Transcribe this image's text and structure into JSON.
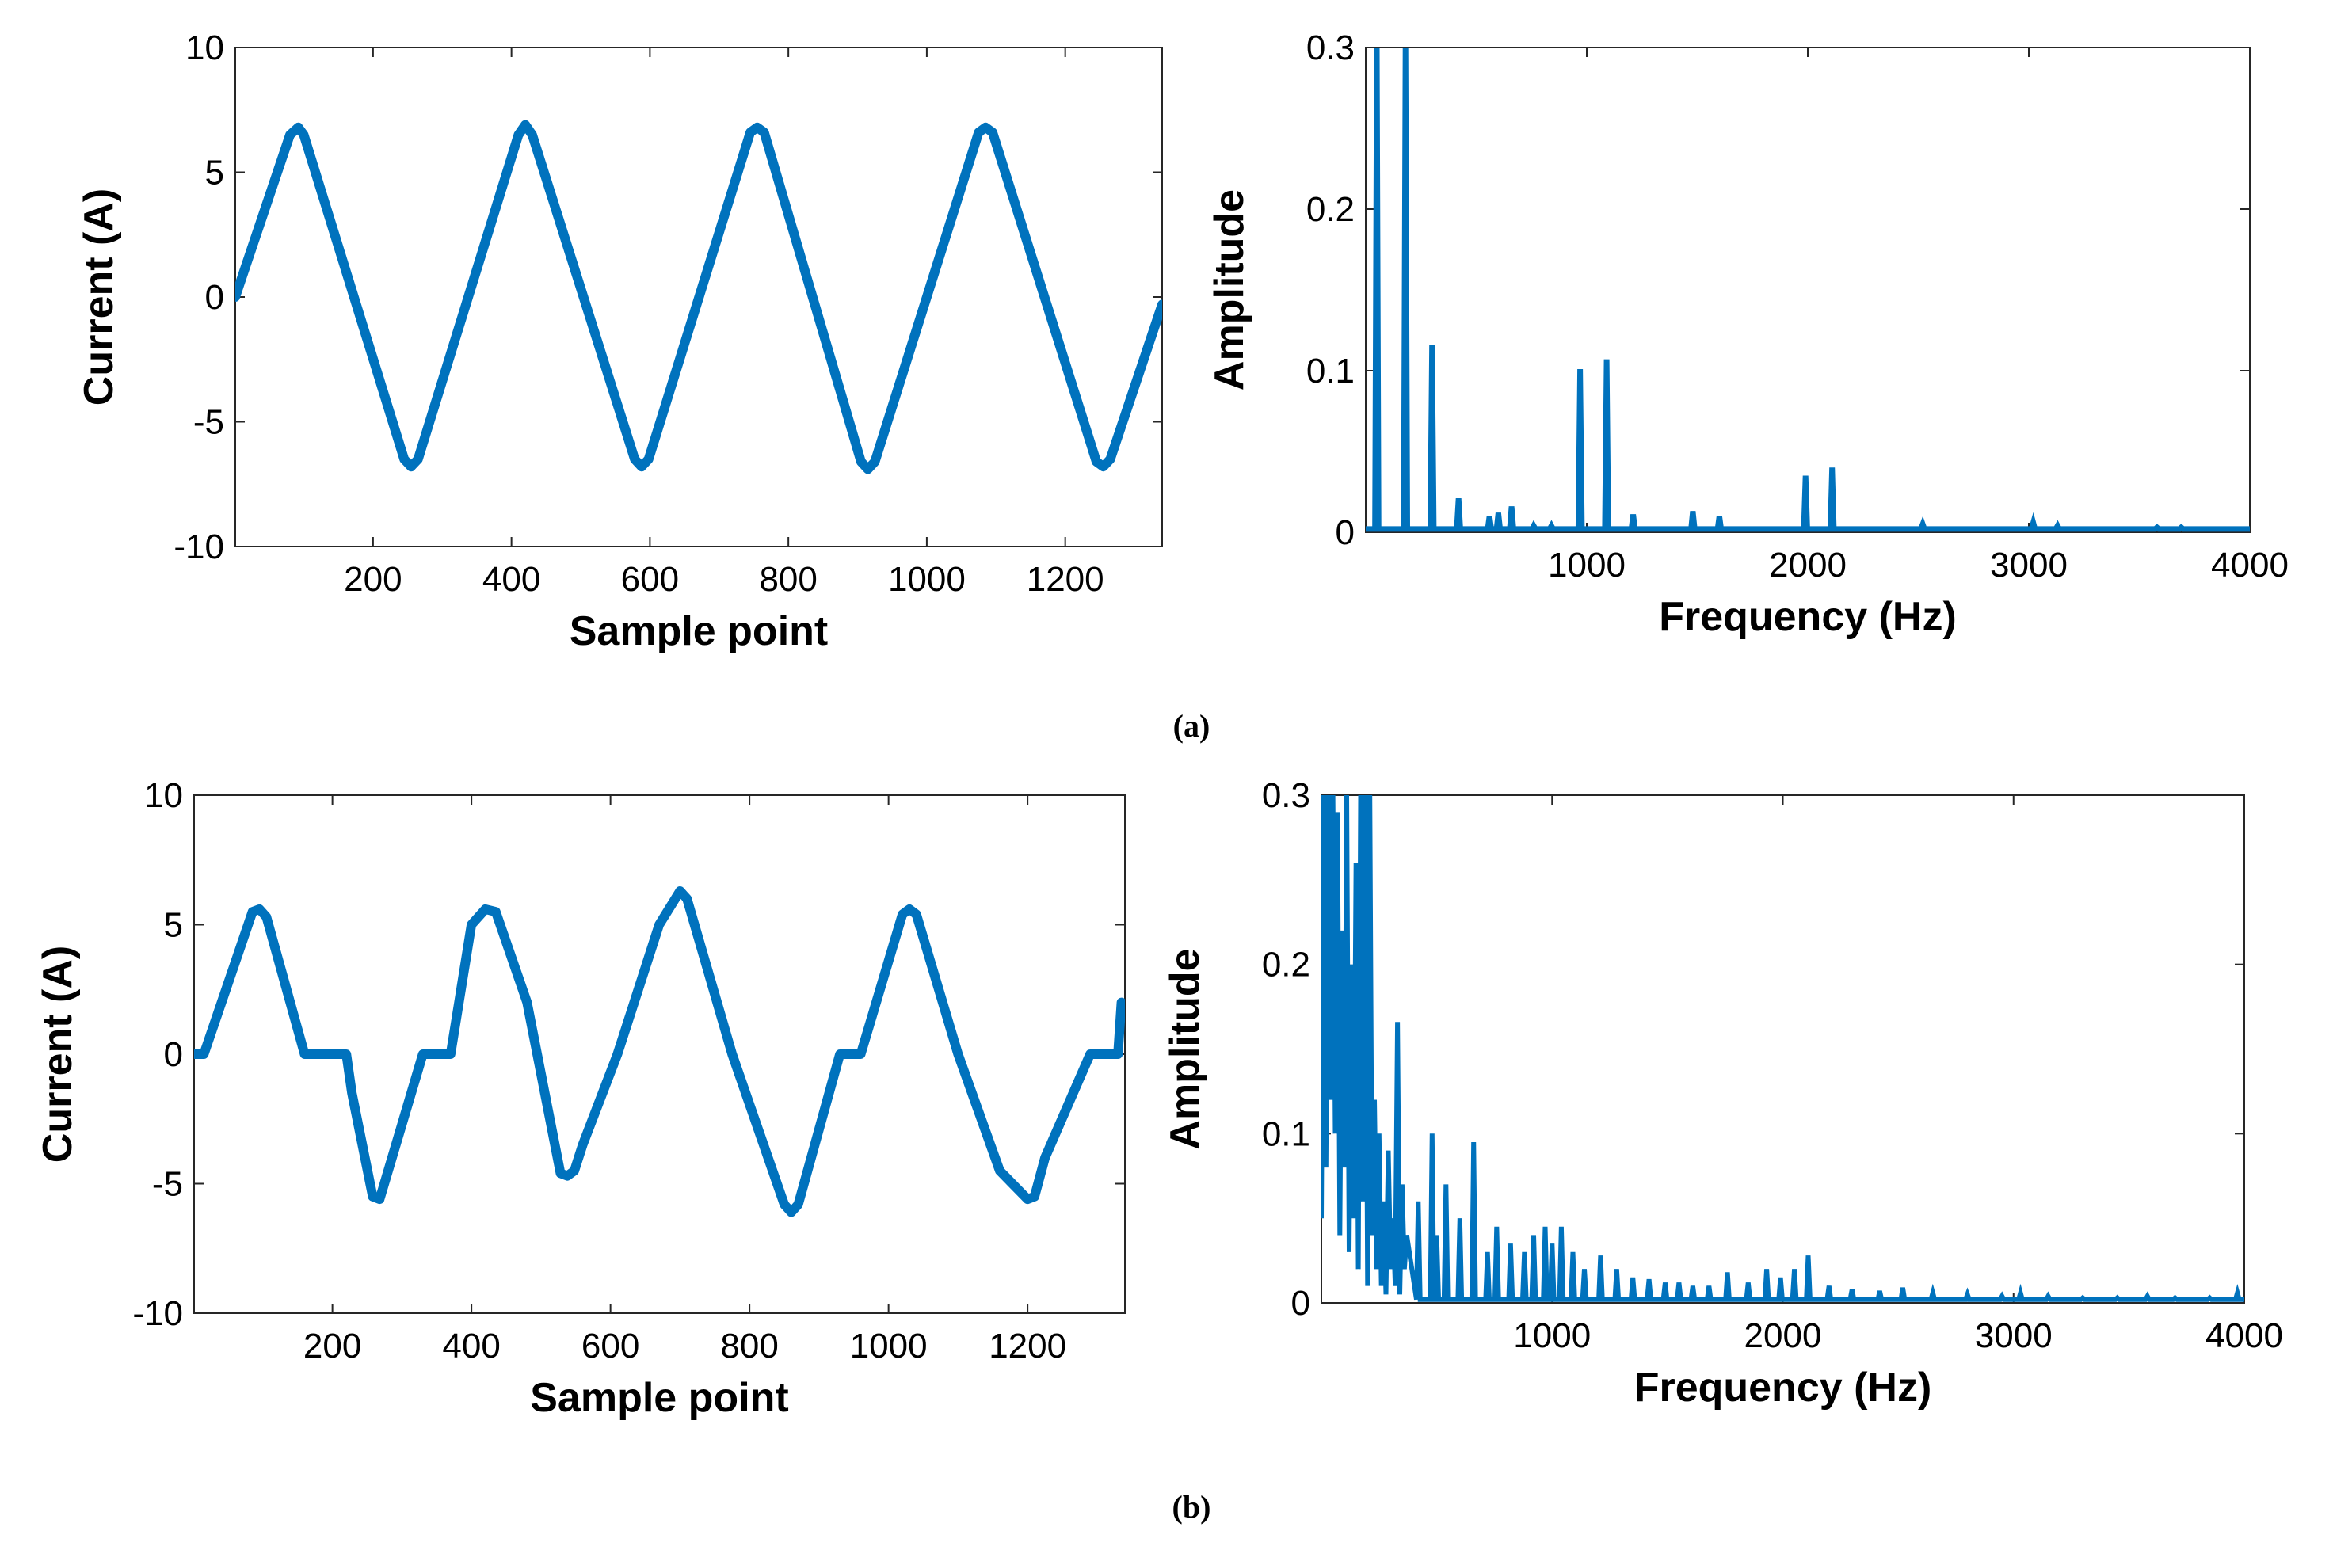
{
  "figure": {
    "caption_a": "(a)",
    "caption_b": "(b)"
  },
  "colors": {
    "series": "#0072BD",
    "axes": "#262626"
  },
  "chart_data": [
    {
      "id": "a-time",
      "type": "line",
      "xlabel": "Sample point",
      "ylabel": "Current (A)",
      "xlim": [
        1,
        1340
      ],
      "ylim": [
        -10,
        10
      ],
      "xticks": [
        200,
        400,
        600,
        800,
        1000,
        1200
      ],
      "yticks": [
        10,
        5,
        0,
        -5,
        -10
      ],
      "xtick_labels": [
        "200",
        "400",
        "600",
        "800",
        "1000",
        "1200"
      ],
      "ytick_labels": [
        "10",
        "5",
        "0",
        "-5",
        "-10"
      ],
      "x": [
        1,
        80,
        92,
        100,
        245,
        255,
        265,
        410,
        420,
        430,
        578,
        588,
        598,
        745,
        755,
        765,
        905,
        915,
        925,
        1075,
        1085,
        1095,
        1245,
        1255,
        1265,
        1340
      ],
      "values": [
        0,
        6.5,
        6.8,
        6.5,
        -6.5,
        -6.8,
        -6.5,
        6.5,
        6.9,
        6.5,
        -6.5,
        -6.8,
        -6.5,
        6.6,
        6.8,
        6.6,
        -6.6,
        -6.9,
        -6.6,
        6.6,
        6.8,
        6.6,
        -6.6,
        -6.8,
        -6.5,
        -0.3
      ]
    },
    {
      "id": "a-spectrum",
      "type": "line",
      "xlabel": "Frequency (Hz)",
      "ylabel": "Amplitude",
      "xlim": [
        0,
        4000
      ],
      "ylim": [
        0,
        0.3
      ],
      "xticks": [
        1000,
        2000,
        3000,
        4000
      ],
      "yticks": [
        0.3,
        0.2,
        0.1,
        0
      ],
      "xtick_labels": [
        "1000",
        "2000",
        "3000",
        "4000"
      ],
      "ytick_labels": [
        "0.3",
        "0.2",
        "0.1",
        "0"
      ],
      "peak_freqs": [
        50,
        180,
        300,
        420,
        560,
        600,
        660,
        760,
        840,
        970,
        1090,
        1210,
        1480,
        1600,
        1990,
        2110,
        2520,
        3020,
        3130,
        3580,
        3690
      ],
      "peak_values": [
        0.3,
        0.3,
        0.116,
        0.021,
        0.01,
        0.012,
        0.016,
        0.004,
        0.004,
        0.101,
        0.107,
        0.011,
        0.013,
        0.01,
        0.035,
        0.04,
        0.005,
        0.006,
        0.004,
        0.003,
        0.003
      ]
    },
    {
      "id": "b-time",
      "type": "line",
      "xlabel": "Sample point",
      "ylabel": "Current (A)",
      "xlim": [
        1,
        1340
      ],
      "ylim": [
        -10,
        10
      ],
      "xticks": [
        200,
        400,
        600,
        800,
        1000,
        1200
      ],
      "yticks": [
        10,
        5,
        0,
        -5,
        -10
      ],
      "xtick_labels": [
        "200",
        "400",
        "600",
        "800",
        "1000",
        "1200"
      ],
      "ytick_labels": [
        "10",
        "5",
        "0",
        "-5",
        "-10"
      ],
      "x": [
        1,
        15,
        85,
        95,
        105,
        160,
        220,
        228,
        258,
        268,
        330,
        370,
        400,
        420,
        435,
        480,
        528,
        538,
        548,
        560,
        610,
        670,
        700,
        710,
        775,
        850,
        860,
        870,
        930,
        960,
        1020,
        1030,
        1040,
        1100,
        1160,
        1200,
        1210,
        1225,
        1290,
        1330,
        1335
      ],
      "values": [
        0,
        0,
        5.5,
        5.6,
        5.3,
        0,
        0,
        -1.5,
        -5.5,
        -5.6,
        0,
        0,
        5,
        5.6,
        5.5,
        2,
        -4.6,
        -4.7,
        -4.5,
        -3.5,
        0,
        5,
        6.3,
        6,
        0,
        -5.8,
        -6.1,
        -5.8,
        0,
        0,
        5.4,
        5.6,
        5.4,
        0,
        -4.5,
        -5.6,
        -5.5,
        -4,
        0,
        0,
        2
      ]
    },
    {
      "id": "b-spectrum",
      "type": "line",
      "xlabel": "Frequency (Hz)",
      "ylabel": "Amplitude",
      "xlim": [
        0,
        4000
      ],
      "ylim": [
        0,
        0.3
      ],
      "xticks": [
        1000,
        2000,
        3000,
        4000
      ],
      "yticks": [
        0.3,
        0.2,
        0.1,
        0
      ],
      "xtick_labels": [
        "1000",
        "2000",
        "3000",
        "4000"
      ],
      "ytick_labels": [
        "0.3",
        "0.2",
        "0.1",
        "0"
      ],
      "low_freq_points": [
        [
          0,
          0.05
        ],
        [
          10,
          0.3
        ],
        [
          20,
          0.08
        ],
        [
          30,
          0.3
        ],
        [
          40,
          0.12
        ],
        [
          50,
          0.3
        ],
        [
          60,
          0.1
        ],
        [
          70,
          0.29
        ],
        [
          80,
          0.04
        ],
        [
          90,
          0.22
        ],
        [
          100,
          0.08
        ],
        [
          110,
          0.3
        ],
        [
          120,
          0.03
        ],
        [
          130,
          0.2
        ],
        [
          140,
          0.05
        ],
        [
          150,
          0.26
        ],
        [
          160,
          0.02
        ],
        [
          170,
          0.3
        ],
        [
          180,
          0.06
        ],
        [
          190,
          0.3
        ],
        [
          200,
          0.01
        ],
        [
          210,
          0.3
        ],
        [
          220,
          0.04
        ],
        [
          230,
          0.12
        ],
        [
          240,
          0.02
        ],
        [
          250,
          0.1
        ],
        [
          260,
          0.01
        ],
        [
          270,
          0.06
        ],
        [
          280,
          0.005
        ],
        [
          290,
          0.09
        ],
        [
          300,
          0.02
        ],
        [
          310,
          0.05
        ],
        [
          320,
          0.01
        ],
        [
          330,
          0.166
        ],
        [
          340,
          0.005
        ],
        [
          350,
          0.07
        ],
        [
          360,
          0.02
        ],
        [
          370,
          0.04
        ]
      ],
      "peak_freqs": [
        420,
        480,
        500,
        540,
        600,
        660,
        720,
        760,
        820,
        880,
        920,
        970,
        1000,
        1040,
        1090,
        1140,
        1210,
        1280,
        1350,
        1420,
        1490,
        1550,
        1610,
        1680,
        1760,
        1850,
        1930,
        1990,
        2050,
        2110,
        2200,
        2300,
        2420,
        2520,
        2650,
        2800,
        2950,
        3030,
        3150,
        3300,
        3450,
        3580,
        3700,
        3850,
        3970
      ],
      "peak_values": [
        0.06,
        0.1,
        0.04,
        0.07,
        0.05,
        0.095,
        0.03,
        0.045,
        0.035,
        0.03,
        0.04,
        0.045,
        0.035,
        0.045,
        0.03,
        0.02,
        0.028,
        0.02,
        0.015,
        0.014,
        0.012,
        0.012,
        0.01,
        0.01,
        0.018,
        0.012,
        0.02,
        0.015,
        0.02,
        0.028,
        0.01,
        0.008,
        0.007,
        0.009,
        0.006,
        0.005,
        0.004,
        0.006,
        0.004,
        0.003,
        0.003,
        0.004,
        0.003,
        0.003,
        0.006
      ]
    }
  ]
}
